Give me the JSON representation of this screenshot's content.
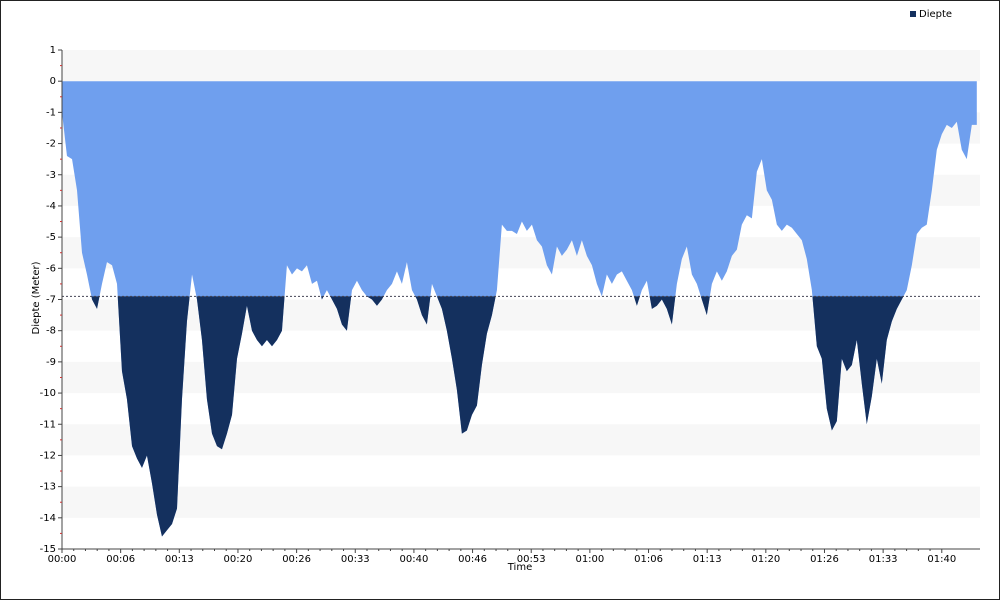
{
  "chart_data": {
    "type": "area",
    "y_label": "Diepte (Meter)",
    "x_label": "Time",
    "legend": "top-right",
    "grid": "bands",
    "fill_color": "#6f9fee",
    "threshold": -6.9,
    "xlim": [
      0,
      103.3
    ],
    "xticks": [
      {
        "value": 0,
        "label": "00:00"
      },
      {
        "value": 6.6,
        "label": "00:06"
      },
      {
        "value": 13.2,
        "label": "00:13"
      },
      {
        "value": 19.8,
        "label": "00:20"
      },
      {
        "value": 26.4,
        "label": "00:26"
      },
      {
        "value": 33,
        "label": "00:33"
      },
      {
        "value": 39.6,
        "label": "00:40"
      },
      {
        "value": 46.2,
        "label": "00:46"
      },
      {
        "value": 52.8,
        "label": "00:53"
      },
      {
        "value": 59.4,
        "label": "01:00"
      },
      {
        "value": 66,
        "label": "01:06"
      },
      {
        "value": 72.6,
        "label": "01:13"
      },
      {
        "value": 79.2,
        "label": "01:20"
      },
      {
        "value": 85.8,
        "label": "01:26"
      },
      {
        "value": 92.4,
        "label": "01:33"
      },
      {
        "value": 99,
        "label": "01:40"
      }
    ],
    "ylim": [
      -15,
      1
    ],
    "yticks": [
      1,
      0,
      -1,
      -2,
      -3,
      -4,
      -5,
      -6,
      -7,
      -8,
      -9,
      -10,
      -11,
      -12,
      -13,
      -14,
      -15
    ],
    "x": [
      0,
      0.56,
      1.13,
      1.69,
      2.25,
      2.81,
      3.38,
      3.94,
      4.5,
      5.06,
      5.63,
      6.19,
      6.75,
      7.31,
      7.88,
      8.44,
      9,
      9.56,
      10.13,
      10.69,
      11.25,
      11.81,
      12.38,
      12.94,
      13.5,
      14.06,
      14.63,
      15.19,
      15.75,
      16.31,
      16.88,
      17.44,
      18,
      18.56,
      19.13,
      19.69,
      20.25,
      20.81,
      21.38,
      21.94,
      22.5,
      23.06,
      23.63,
      24.19,
      24.75,
      25.31,
      25.88,
      26.44,
      27,
      27.56,
      28.13,
      28.69,
      29.25,
      29.81,
      30.38,
      30.94,
      31.5,
      32.06,
      32.63,
      33.19,
      33.75,
      34.31,
      34.88,
      35.44,
      36,
      36.56,
      37.13,
      37.69,
      38.25,
      38.81,
      39.38,
      39.94,
      40.5,
      41.06,
      41.63,
      42.19,
      42.75,
      43.31,
      43.88,
      44.44,
      45,
      45.56,
      46.13,
      46.69,
      47.25,
      47.81,
      48.38,
      48.94,
      49.5,
      50.06,
      50.63,
      51.19,
      51.75,
      52.31,
      52.88,
      53.44,
      54,
      54.56,
      55.13,
      55.69,
      56.25,
      56.81,
      57.38,
      57.94,
      58.5,
      59.06,
      59.63,
      60.19,
      60.75,
      61.31,
      61.88,
      62.44,
      63,
      63.56,
      64.13,
      64.69,
      65.25,
      65.81,
      66.38,
      66.94,
      67.5,
      68.06,
      68.63,
      69.19,
      69.75,
      70.31,
      70.88,
      71.44,
      72,
      72.56,
      73.13,
      73.69,
      74.25,
      74.81,
      75.38,
      75.94,
      76.5,
      77.06,
      77.63,
      78.19,
      78.75,
      79.31,
      79.88,
      80.44,
      81,
      81.56,
      82.13,
      82.69,
      83.25,
      83.81,
      84.38,
      84.94,
      85.5,
      86.06,
      86.63,
      87.19,
      87.75,
      88.31,
      88.88,
      89.44,
      90,
      90.56,
      91.13,
      91.69,
      92.25,
      92.81,
      93.38,
      93.94,
      94.5,
      95.06,
      95.63,
      96.19,
      96.75,
      97.31,
      97.88,
      98.44,
      99,
      99.56,
      100.13,
      100.69,
      101.25,
      101.81,
      102.38,
      102.94
    ],
    "series": [
      {
        "name": "Diepte",
        "color": "#14305e",
        "values": [
          -1,
          -2.4,
          -2.5,
          -3.5,
          -5.5,
          -6.2,
          -7.0,
          -7.3,
          -6.5,
          -5.8,
          -5.9,
          -6.5,
          -9.3,
          -10.2,
          -11.7,
          -12.1,
          -12.4,
          -12.0,
          -12.9,
          -13.9,
          -14.6,
          -14.4,
          -14.2,
          -13.7,
          -10.2,
          -7.7,
          -6.2,
          -7.0,
          -8.3,
          -10.2,
          -11.3,
          -11.7,
          -11.8,
          -11.3,
          -10.7,
          -8.9,
          -8.1,
          -7.2,
          -8.0,
          -8.3,
          -8.5,
          -8.3,
          -8.5,
          -8.3,
          -8.0,
          -5.9,
          -6.2,
          -6.0,
          -6.1,
          -5.9,
          -6.5,
          -6.4,
          -7.0,
          -6.7,
          -7.0,
          -7.3,
          -7.8,
          -8.0,
          -6.7,
          -6.4,
          -6.7,
          -6.9,
          -7.0,
          -7.2,
          -7.0,
          -6.7,
          -6.5,
          -6.1,
          -6.5,
          -5.8,
          -6.7,
          -7.0,
          -7.5,
          -7.8,
          -6.5,
          -6.9,
          -7.3,
          -8.0,
          -8.9,
          -9.9,
          -11.3,
          -11.2,
          -10.7,
          -10.4,
          -9.1,
          -8.1,
          -7.5,
          -6.7,
          -4.6,
          -4.8,
          -4.8,
          -4.9,
          -4.5,
          -4.8,
          -4.6,
          -5.1,
          -5.3,
          -5.9,
          -6.2,
          -5.3,
          -5.6,
          -5.4,
          -5.1,
          -5.6,
          -5.1,
          -5.6,
          -5.9,
          -6.5,
          -6.9,
          -6.2,
          -6.5,
          -6.2,
          -6.1,
          -6.4,
          -6.7,
          -7.2,
          -6.7,
          -6.4,
          -7.3,
          -7.2,
          -7.0,
          -7.3,
          -7.8,
          -6.5,
          -5.7,
          -5.3,
          -6.2,
          -6.5,
          -7.0,
          -7.5,
          -6.5,
          -6.1,
          -6.4,
          -6.1,
          -5.6,
          -5.4,
          -4.6,
          -4.3,
          -4.4,
          -2.9,
          -2.5,
          -3.5,
          -3.8,
          -4.6,
          -4.8,
          -4.6,
          -4.7,
          -4.9,
          -5.1,
          -5.7,
          -6.7,
          -8.5,
          -8.9,
          -10.5,
          -11.2,
          -10.9,
          -8.9,
          -9.3,
          -9.1,
          -8.3,
          -9.7,
          -11.0,
          -10.1,
          -8.9,
          -9.7,
          -8.3,
          -7.7,
          -7.3,
          -7.0,
          -6.7,
          -5.9,
          -4.9,
          -4.7,
          -4.6,
          -3.5,
          -2.2,
          -1.7,
          -1.4,
          -1.5,
          -1.3,
          -2.2,
          -2.5,
          -1.4,
          -1.4
        ]
      }
    ]
  }
}
